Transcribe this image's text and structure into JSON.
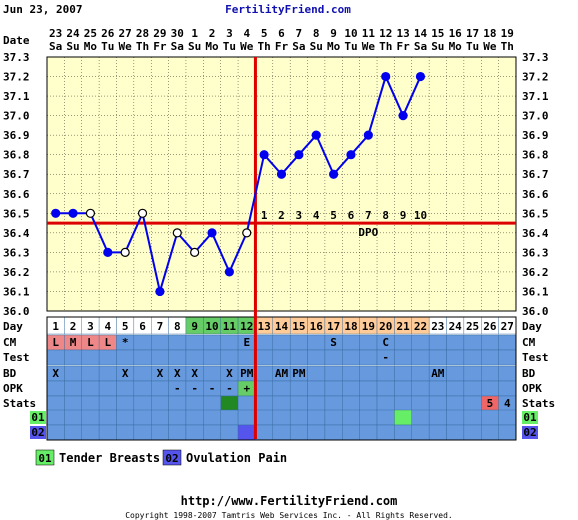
{
  "header": {
    "date": "Jun 23, 2007",
    "site": "FertilityFriend.com"
  },
  "footer": {
    "url": "http://www.FertilityFriend.com",
    "copyright": "Copyright 1998-2007 Tamtris Web Services Inc. - All Rights Reserved."
  },
  "legend": [
    {
      "code": "01",
      "label": "Tender Breasts",
      "color": "#66ee66"
    },
    {
      "code": "02",
      "label": "Ovulation Pain",
      "color": "#5555ee"
    }
  ],
  "row_labels": {
    "date": "Date",
    "day": "Day",
    "cm": "CM",
    "test": "Test",
    "bd": "BD",
    "opk": "OPK",
    "stats": "Stats",
    "sym1": "01",
    "sym2": "02"
  },
  "dpo_label": "DPO",
  "colors": {
    "plot_bg": "#ffffcc",
    "grid": "#000000",
    "line": "#0000ee",
    "coverline": "#dd0000",
    "row_bg": "#6699dd",
    "fertile": "#66cc66",
    "luteal": "#ffcc99",
    "menses": "#ee8888",
    "dark_green": "#228822",
    "stats_red": "#ee6666"
  },
  "chart_data": {
    "type": "line",
    "x_dates": [
      "23",
      "24",
      "25",
      "26",
      "27",
      "28",
      "29",
      "30",
      "1",
      "2",
      "3",
      "4",
      "5",
      "6",
      "7",
      "8",
      "9",
      "10",
      "11",
      "12",
      "13",
      "14",
      "15",
      "16",
      "17",
      "18",
      "19"
    ],
    "x_weekdays": [
      "Sa",
      "Su",
      "Mo",
      "Tu",
      "We",
      "Th",
      "Fr",
      "Sa",
      "Su",
      "Mo",
      "Tu",
      "We",
      "Th",
      "Fr",
      "Sa",
      "Su",
      "Mo",
      "Tu",
      "We",
      "Th",
      "Fr",
      "Sa",
      "Su",
      "Mo",
      "Tu",
      "We",
      "Th"
    ],
    "cycle_days": [
      1,
      2,
      3,
      4,
      5,
      6,
      7,
      8,
      9,
      10,
      11,
      12,
      13,
      14,
      15,
      16,
      17,
      18,
      19,
      20,
      21,
      22,
      23,
      24,
      25,
      26,
      27
    ],
    "temps": [
      36.5,
      36.5,
      36.5,
      36.3,
      36.3,
      36.5,
      36.1,
      36.4,
      36.3,
      36.4,
      36.2,
      36.4,
      36.8,
      36.7,
      36.8,
      36.9,
      36.7,
      36.8,
      36.9,
      37.2,
      37.0,
      37.2,
      null,
      null,
      null,
      null,
      null
    ],
    "open_points": [
      3,
      5,
      6,
      8,
      9,
      12
    ],
    "ylim": [
      36.0,
      37.3
    ],
    "yticks": [
      "36.0",
      "36.1",
      "36.2",
      "36.3",
      "36.4",
      "36.5",
      "36.6",
      "36.7",
      "36.8",
      "36.9",
      "37.0",
      "37.1",
      "37.2",
      "37.3"
    ],
    "coverline": 36.45,
    "ovulation_day": 12,
    "dpo_labels": [
      "1",
      "2",
      "3",
      "4",
      "5",
      "6",
      "7",
      "8",
      "9",
      "10"
    ],
    "dpo_start_day": 13,
    "fertile_days": [
      9,
      10,
      11,
      12
    ],
    "luteal_days": [
      13,
      14,
      15,
      16,
      17,
      18,
      19,
      20,
      21,
      22
    ],
    "grid": true,
    "cm": {
      "1": "L",
      "2": "M",
      "3": "L",
      "4": "L",
      "5": "*",
      "12": "E",
      "17": "S",
      "20": "C"
    },
    "test": {
      "20": "-"
    },
    "bd": {
      "1": "X",
      "5": "X",
      "7": "X",
      "8": "X",
      "9": "X",
      "11": "X",
      "12": "PM",
      "14": "AM",
      "15": "PM",
      "23": "AM"
    },
    "opk": {
      "8": "-",
      "9": "-",
      "10": "-",
      "11": "-",
      "12": "+"
    },
    "stats": {
      "26": "5",
      "27": "4"
    },
    "symptom_01_day": 21,
    "symptom_02_day": 12,
    "stats_marker_day": 11
  }
}
